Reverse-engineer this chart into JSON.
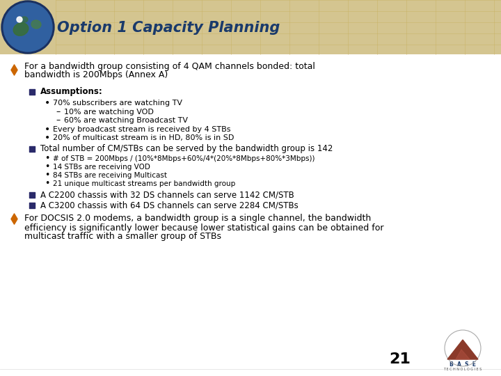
{
  "title": "Option 1 Capacity Planning",
  "title_color": "#1a3a6b",
  "header_bg": "#d4c590",
  "slide_bg": "#ffffff",
  "page_number": "21",
  "bullet1_line1": "For a bandwidth group consisting of 4 QAM channels bonded: total",
  "bullet1_line2": "bandwidth is 200Mbps (Annex A)",
  "sub1_header": "Assumptions:",
  "sub1_b1": "70% subscribers are watching TV",
  "sub1_b1_sub1": "10% are watching VOD",
  "sub1_b1_sub2": "60% are watching Broadcast TV",
  "sub1_b2": "Every broadcast stream is received by 4 STBs",
  "sub1_b3": "20% of multicast stream is in HD, 80% is in SD",
  "sub2": "Total number of CM/STBs can be served by the bandwidth group is 142",
  "sub2_b1": "# of STB = 200Mbps / (10%*8Mbps+60%/4*(20%*8Mbps+80%*3Mbps))",
  "sub2_b2": "14 STBs are receiving VOD",
  "sub2_b3": "84 STBs are receiving Multicast",
  "sub2_b4": "21 unique multicast streams per bandwidth group",
  "sub3": "A C2200 chassis with 32 DS channels can serve 1142 CM/STB",
  "sub4": "A C3200 chassis with 64 DS channels can serve 2284 CM/STBs",
  "bullet2_line1": "For DOCSIS 2.0 modems, a bandwidth group is a single channel, the bandwidth",
  "bullet2_line2": "efficiency is significantly lower because lower statistical gains can be obtained for",
  "bullet2_line3": "multicast traffic with a smaller group of STBs",
  "text_color": "#000000",
  "bullet_orange": "#cc6600",
  "bullet_dark": "#2a2a6a",
  "grid_color": "#c8b060",
  "font_size_title": 15,
  "font_size_l1": 9,
  "font_size_l2": 8.5,
  "font_size_l3": 8,
  "font_size_l4": 7.5
}
